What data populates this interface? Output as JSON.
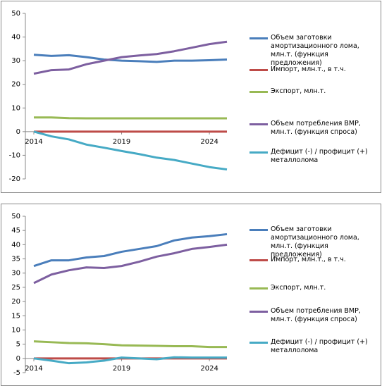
{
  "charts": [
    {
      "chart_data": {
        "type": "line",
        "grid": false,
        "x": [
          2014,
          2015,
          2016,
          2017,
          2018,
          2019,
          2020,
          2021,
          2022,
          2023,
          2024,
          2025
        ],
        "xlim": [
          2014,
          2025
        ],
        "xticks": [
          2014,
          2019,
          2024
        ],
        "ylim": [
          -20,
          50
        ],
        "yticks": [
          -20,
          -10,
          0,
          10,
          20,
          30,
          40,
          50
        ],
        "series": [
          {
            "name": "Объем заготовки амортизационного лома, млн.т. (функция предложения)",
            "color": "#4a7ebb",
            "values": [
              32.5,
              32,
              32.3,
              31.5,
              30.5,
              30,
              29.8,
              29.5,
              30,
              30,
              30.2,
              30.5
            ]
          },
          {
            "name": "Импорт, млн.т., в т.ч.",
            "color": "#be4b48",
            "values": [
              0,
              0,
              0,
              0,
              0,
              0,
              0,
              0,
              0,
              0,
              0,
              0
            ]
          },
          {
            "name": "Экспорт, млн.т.",
            "color": "#98b954",
            "values": [
              6,
              6,
              5.7,
              5.6,
              5.6,
              5.6,
              5.6,
              5.6,
              5.6,
              5.6,
              5.6,
              5.6
            ]
          },
          {
            "name": "Объем потребления ВМР, млн.т. (функция спроса)",
            "color": "#7d5fa0",
            "values": [
              24.5,
              26,
              26.3,
              28.5,
              30,
              31.5,
              32.2,
              32.8,
              34,
              35.5,
              37,
              38
            ]
          },
          {
            "name": "Дефицит (-) / профицит (+) металлолома",
            "color": "#46aac5",
            "values": [
              0,
              -2,
              -3.3,
              -5.5,
              -6.8,
              -8.2,
              -9.5,
              -11,
              -12,
              -13.5,
              -15,
              -16
            ]
          }
        ]
      }
    },
    {
      "chart_data": {
        "type": "line",
        "grid": false,
        "x": [
          2014,
          2015,
          2016,
          2017,
          2018,
          2019,
          2020,
          2021,
          2022,
          2023,
          2024,
          2025
        ],
        "xlim": [
          2014,
          2025
        ],
        "xticks": [
          2014,
          2019,
          2024
        ],
        "ylim": [
          -5,
          50
        ],
        "yticks": [
          -5,
          0,
          5,
          10,
          15,
          20,
          25,
          30,
          35,
          40,
          45,
          50
        ],
        "series": [
          {
            "name": "Объем заготовки амортизационного лома, млн.т. (функция предложения)",
            "color": "#4a7ebb",
            "values": [
              32.5,
              34.5,
              34.5,
              35.5,
              36,
              37.5,
              38.5,
              39.5,
              41.5,
              42.5,
              43,
              43.7
            ]
          },
          {
            "name": "Импорт, млн.т., в т.ч.",
            "color": "#be4b48",
            "values": [
              0,
              0,
              0,
              0,
              0,
              0,
              0,
              0,
              0,
              0,
              0,
              0
            ]
          },
          {
            "name": "Экспорт, млн.т.",
            "color": "#98b954",
            "values": [
              6,
              5.7,
              5.4,
              5.3,
              5,
              4.6,
              4.5,
              4.4,
              4.3,
              4.3,
              4,
              4
            ]
          },
          {
            "name": "Объем потребления ВМР, млн.т. (функция спроса)",
            "color": "#7d5fa0",
            "values": [
              26.5,
              29.5,
              31,
              32,
              31.8,
              32.5,
              34,
              35.8,
              37,
              38.5,
              39.2,
              40
            ]
          },
          {
            "name": "Дефицит (-) / профицит (+) металлолома",
            "color": "#46aac5",
            "values": [
              0,
              -0.8,
              -1.7,
              -1.4,
              -0.8,
              0.3,
              0,
              -0.3,
              0.4,
              0.3,
              0.3,
              0.3
            ]
          }
        ]
      }
    }
  ]
}
